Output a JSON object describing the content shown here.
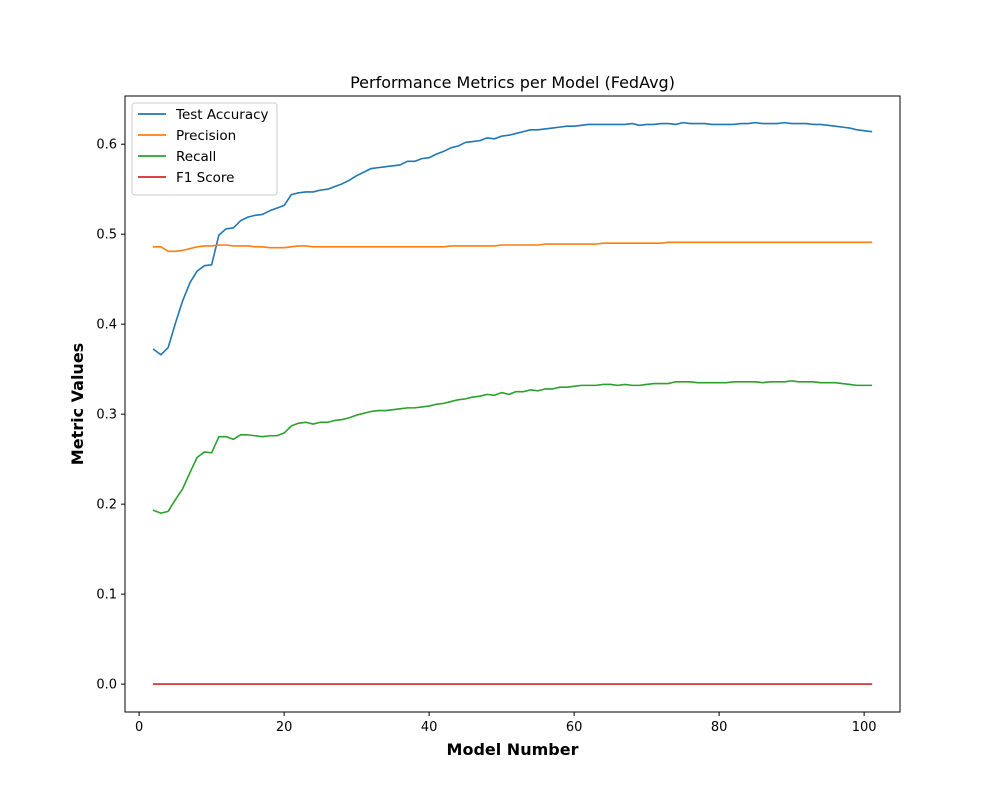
{
  "chart_data": {
    "type": "line",
    "title": "Performance Metrics per Model (FedAvg)",
    "xlabel": "Model Number",
    "ylabel": "Metric Values",
    "xlim": [
      -1.95,
      104.95
    ],
    "ylim": [
      -0.031,
      0.6536
    ],
    "xticks": [
      0,
      20,
      40,
      60,
      80,
      100
    ],
    "xtick_labels": [
      "0",
      "20",
      "40",
      "60",
      "80",
      "100"
    ],
    "yticks": [
      0.0,
      0.1,
      0.2,
      0.3,
      0.4,
      0.5,
      0.6
    ],
    "ytick_labels": [
      "0.0",
      "0.1",
      "0.2",
      "0.3",
      "0.4",
      "0.5",
      "0.6"
    ],
    "grid": false,
    "legend_position": "top-left",
    "x": [
      2,
      3,
      4,
      5,
      6,
      7,
      8,
      9,
      10,
      11,
      12,
      13,
      14,
      15,
      16,
      17,
      18,
      19,
      20,
      21,
      22,
      23,
      24,
      25,
      26,
      27,
      28,
      29,
      30,
      31,
      32,
      33,
      34,
      35,
      36,
      37,
      38,
      39,
      40,
      41,
      42,
      43,
      44,
      45,
      46,
      47,
      48,
      49,
      50,
      51,
      52,
      53,
      54,
      55,
      56,
      57,
      58,
      59,
      60,
      61,
      62,
      63,
      64,
      65,
      66,
      67,
      68,
      69,
      70,
      71,
      72,
      73,
      74,
      75,
      76,
      77,
      78,
      79,
      80,
      81,
      82,
      83,
      84,
      85,
      86,
      87,
      88,
      89,
      90,
      91,
      92,
      93,
      94,
      95,
      96,
      97,
      98,
      99,
      100,
      101
    ],
    "series": [
      {
        "name": "Test Accuracy",
        "color": "#1f77b4",
        "values": [
          0.372,
          0.366,
          0.374,
          0.401,
          0.426,
          0.446,
          0.459,
          0.465,
          0.466,
          0.499,
          0.506,
          0.507,
          0.515,
          0.519,
          0.521,
          0.522,
          0.526,
          0.529,
          0.532,
          0.544,
          0.546,
          0.547,
          0.547,
          0.549,
          0.55,
          0.553,
          0.556,
          0.56,
          0.565,
          0.569,
          0.573,
          0.574,
          0.575,
          0.576,
          0.577,
          0.581,
          0.581,
          0.584,
          0.585,
          0.589,
          0.592,
          0.596,
          0.598,
          0.602,
          0.603,
          0.604,
          0.607,
          0.606,
          0.609,
          0.61,
          0.612,
          0.614,
          0.616,
          0.616,
          0.617,
          0.618,
          0.619,
          0.62,
          0.62,
          0.621,
          0.622,
          0.622,
          0.622,
          0.622,
          0.622,
          0.622,
          0.623,
          0.621,
          0.622,
          0.622,
          0.623,
          0.623,
          0.622,
          0.624,
          0.623,
          0.623,
          0.623,
          0.622,
          0.622,
          0.622,
          0.622,
          0.623,
          0.623,
          0.624,
          0.623,
          0.623,
          0.623,
          0.624,
          0.623,
          0.623,
          0.623,
          0.622,
          0.622,
          0.621,
          0.62,
          0.619,
          0.618,
          0.616,
          0.615,
          0.614
        ]
      },
      {
        "name": "Precision",
        "color": "#ff7f0e",
        "values": [
          0.486,
          0.486,
          0.481,
          0.481,
          0.482,
          0.484,
          0.486,
          0.487,
          0.487,
          0.488,
          0.488,
          0.487,
          0.487,
          0.487,
          0.486,
          0.486,
          0.485,
          0.485,
          0.485,
          0.486,
          0.487,
          0.487,
          0.486,
          0.486,
          0.486,
          0.486,
          0.486,
          0.486,
          0.486,
          0.486,
          0.486,
          0.486,
          0.486,
          0.486,
          0.486,
          0.486,
          0.486,
          0.486,
          0.486,
          0.486,
          0.486,
          0.487,
          0.487,
          0.487,
          0.487,
          0.487,
          0.487,
          0.487,
          0.488,
          0.488,
          0.488,
          0.488,
          0.488,
          0.488,
          0.489,
          0.489,
          0.489,
          0.489,
          0.489,
          0.489,
          0.489,
          0.489,
          0.49,
          0.49,
          0.49,
          0.49,
          0.49,
          0.49,
          0.49,
          0.49,
          0.49,
          0.491,
          0.491,
          0.491,
          0.491,
          0.491,
          0.491,
          0.491,
          0.491,
          0.491,
          0.491,
          0.491,
          0.491,
          0.491,
          0.491,
          0.491,
          0.491,
          0.491,
          0.491,
          0.491,
          0.491,
          0.491,
          0.491,
          0.491,
          0.491,
          0.491,
          0.491,
          0.491,
          0.491,
          0.491
        ]
      },
      {
        "name": "Recall",
        "color": "#2ca02c",
        "values": [
          0.193,
          0.19,
          0.192,
          0.205,
          0.217,
          0.235,
          0.252,
          0.258,
          0.257,
          0.275,
          0.275,
          0.272,
          0.277,
          0.277,
          0.276,
          0.275,
          0.276,
          0.276,
          0.279,
          0.287,
          0.29,
          0.291,
          0.289,
          0.291,
          0.291,
          0.293,
          0.294,
          0.296,
          0.299,
          0.301,
          0.303,
          0.304,
          0.304,
          0.305,
          0.306,
          0.307,
          0.307,
          0.308,
          0.309,
          0.311,
          0.312,
          0.314,
          0.316,
          0.317,
          0.319,
          0.32,
          0.322,
          0.321,
          0.324,
          0.322,
          0.325,
          0.325,
          0.327,
          0.326,
          0.328,
          0.328,
          0.33,
          0.33,
          0.331,
          0.332,
          0.332,
          0.332,
          0.333,
          0.333,
          0.332,
          0.333,
          0.332,
          0.332,
          0.333,
          0.334,
          0.334,
          0.334,
          0.336,
          0.336,
          0.336,
          0.335,
          0.335,
          0.335,
          0.335,
          0.335,
          0.336,
          0.336,
          0.336,
          0.336,
          0.335,
          0.336,
          0.336,
          0.336,
          0.337,
          0.336,
          0.336,
          0.336,
          0.335,
          0.335,
          0.335,
          0.334,
          0.333,
          0.332,
          0.332,
          0.332
        ]
      },
      {
        "name": "F1 Score",
        "color": "#d62728",
        "values": [
          0,
          0,
          0,
          0,
          0,
          0,
          0,
          0,
          0,
          0,
          0,
          0,
          0,
          0,
          0,
          0,
          0,
          0,
          0,
          0,
          0,
          0,
          0,
          0,
          0,
          0,
          0,
          0,
          0,
          0,
          0,
          0,
          0,
          0,
          0,
          0,
          0,
          0,
          0,
          0,
          0,
          0,
          0,
          0,
          0,
          0,
          0,
          0,
          0,
          0,
          0,
          0,
          0,
          0,
          0,
          0,
          0,
          0,
          0,
          0,
          0,
          0,
          0,
          0,
          0,
          0,
          0,
          0,
          0,
          0,
          0,
          0,
          0,
          0,
          0,
          0,
          0,
          0,
          0,
          0,
          0,
          0,
          0,
          0,
          0,
          0,
          0,
          0,
          0,
          0,
          0,
          0,
          0,
          0,
          0,
          0,
          0,
          0,
          0,
          0
        ]
      }
    ]
  }
}
